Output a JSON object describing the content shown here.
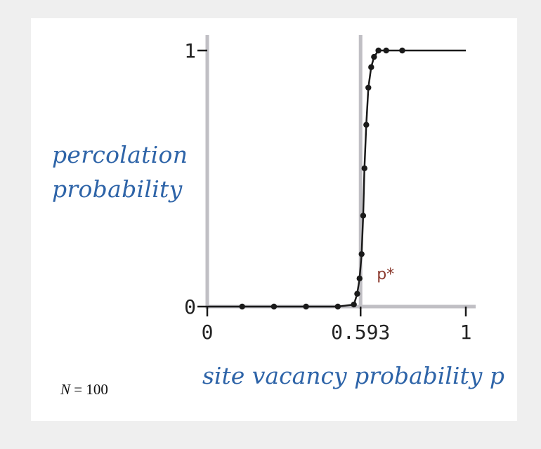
{
  "chart_data": {
    "type": "line",
    "title": "",
    "ylabel_lines": [
      "percolation",
      "probability"
    ],
    "xlabel": "site vacancy probability p",
    "annotation": "N = 100",
    "annotation_var": "N",
    "annotation_rest": " = 100",
    "xlim": [
      0,
      1
    ],
    "ylim": [
      0,
      1
    ],
    "x_ticks": [
      "0",
      "0.593",
      "1"
    ],
    "x_tick_values": [
      0,
      0.593,
      1
    ],
    "y_ticks": [
      "1",
      "0"
    ],
    "y_tick_values": [
      1,
      0
    ],
    "threshold": {
      "x": 0.593,
      "label": "p*"
    },
    "grid": false,
    "colors": {
      "axis": "#c0bfc4",
      "line": "#1a1a1a",
      "label": "#2e64a8",
      "annotation": "#8b3a2e"
    },
    "series": [
      {
        "x": [
          0,
          0.135,
          0.258,
          0.382,
          0.505,
          0.567,
          0.58,
          0.589,
          0.597,
          0.603,
          0.608,
          0.615,
          0.623,
          0.634,
          0.645,
          0.662,
          0.692,
          0.754,
          1
        ],
        "y": [
          0,
          0,
          0,
          0,
          0,
          0.008,
          0.05,
          0.11,
          0.205,
          0.355,
          0.54,
          0.71,
          0.855,
          0.935,
          0.975,
          1.0,
          1.0,
          1.0,
          1.0
        ]
      }
    ]
  }
}
